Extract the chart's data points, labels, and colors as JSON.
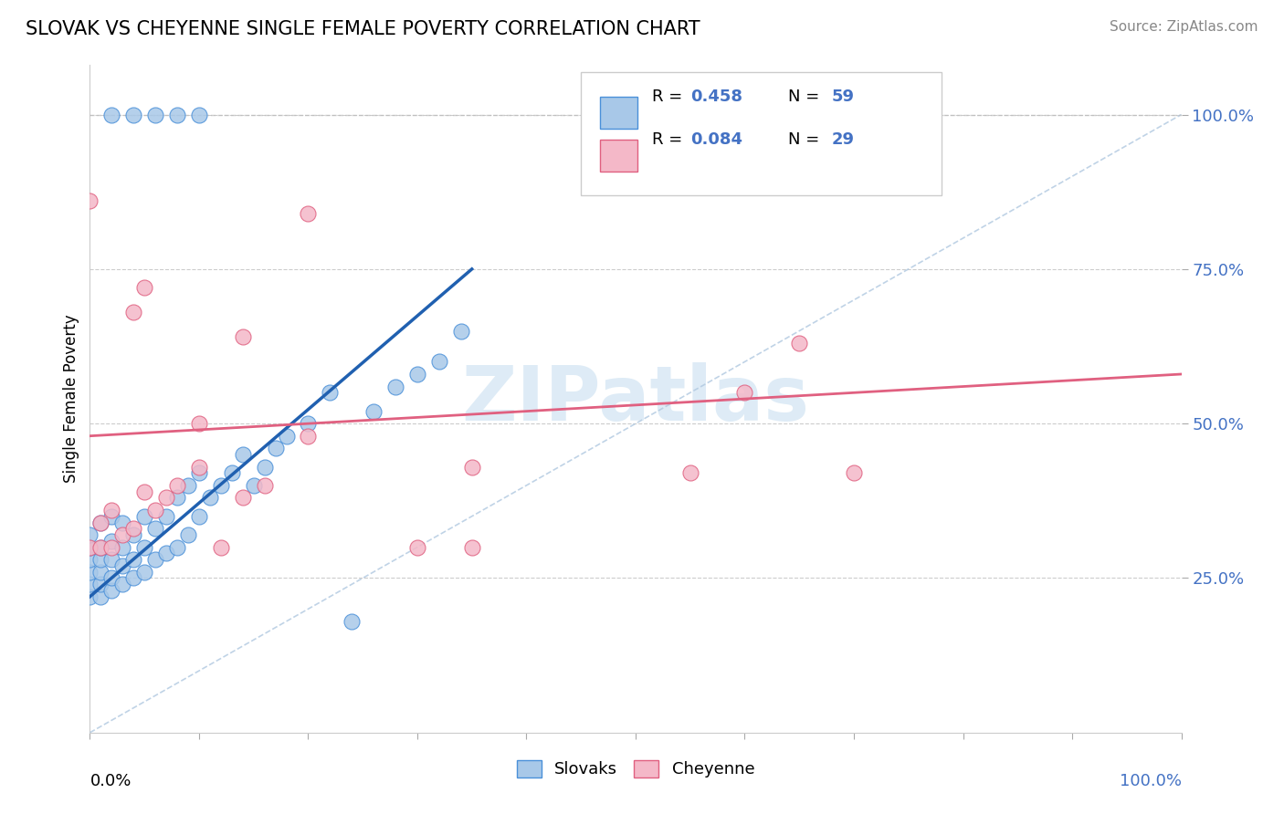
{
  "title": "SLOVAK VS CHEYENNE SINGLE FEMALE POVERTY CORRELATION CHART",
  "source": "Source: ZipAtlas.com",
  "ylabel": "Single Female Poverty",
  "legend_labels": [
    "Slovaks",
    "Cheyenne"
  ],
  "ytick_labels": [
    "25.0%",
    "50.0%",
    "75.0%",
    "100.0%"
  ],
  "ytick_values": [
    0.25,
    0.5,
    0.75,
    1.0
  ],
  "slovak_color": "#A8C8E8",
  "slovak_edge_color": "#4A90D9",
  "cheyenne_color": "#F4B8C8",
  "cheyenne_edge_color": "#E06080",
  "slovak_line_color": "#2060B0",
  "cheyenne_line_color": "#E06080",
  "diagonal_color": "#A8C8E8",
  "watermark_color": "#C8DFF0",
  "r_n_color": "#4472C4",
  "slovak_x": [
    0.0,
    0.0,
    0.0,
    0.0,
    0.0,
    0.0,
    0.01,
    0.01,
    0.01,
    0.01,
    0.01,
    0.01,
    0.02,
    0.02,
    0.02,
    0.02,
    0.02,
    0.03,
    0.03,
    0.03,
    0.03,
    0.04,
    0.04,
    0.04,
    0.05,
    0.05,
    0.05,
    0.06,
    0.06,
    0.07,
    0.07,
    0.08,
    0.08,
    0.09,
    0.09,
    0.1,
    0.1,
    0.11,
    0.12,
    0.13,
    0.14,
    0.15,
    0.16,
    0.17,
    0.18,
    0.2,
    0.22,
    0.24,
    0.26,
    0.28,
    0.3,
    0.32,
    0.34,
    0.02,
    0.04,
    0.06,
    0.08,
    0.1
  ],
  "slovak_y": [
    0.22,
    0.24,
    0.26,
    0.28,
    0.3,
    0.32,
    0.22,
    0.24,
    0.26,
    0.28,
    0.3,
    0.34,
    0.23,
    0.25,
    0.28,
    0.31,
    0.35,
    0.24,
    0.27,
    0.3,
    0.34,
    0.25,
    0.28,
    0.32,
    0.26,
    0.3,
    0.35,
    0.28,
    0.33,
    0.29,
    0.35,
    0.3,
    0.38,
    0.32,
    0.4,
    0.35,
    0.42,
    0.38,
    0.4,
    0.42,
    0.45,
    0.4,
    0.43,
    0.46,
    0.48,
    0.5,
    0.55,
    0.18,
    0.52,
    0.56,
    0.58,
    0.6,
    0.65,
    1.0,
    1.0,
    1.0,
    1.0,
    1.0
  ],
  "cheyenne_x": [
    0.0,
    0.0,
    0.01,
    0.01,
    0.02,
    0.02,
    0.03,
    0.04,
    0.05,
    0.06,
    0.07,
    0.08,
    0.1,
    0.12,
    0.14,
    0.16,
    0.2,
    0.35,
    0.55,
    0.6,
    0.65,
    0.7,
    0.04,
    0.05,
    0.1,
    0.14,
    0.2,
    0.3,
    0.35
  ],
  "cheyenne_y": [
    0.3,
    0.86,
    0.3,
    0.34,
    0.3,
    0.36,
    0.32,
    0.33,
    0.39,
    0.36,
    0.38,
    0.4,
    0.43,
    0.3,
    0.38,
    0.4,
    0.84,
    0.3,
    0.42,
    0.55,
    0.63,
    0.42,
    0.68,
    0.72,
    0.5,
    0.64,
    0.48,
    0.3,
    0.43
  ]
}
